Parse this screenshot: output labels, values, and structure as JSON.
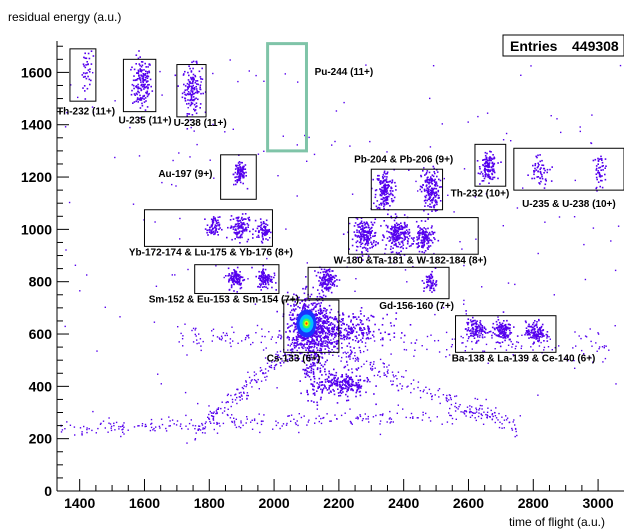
{
  "chart_data": {
    "type": "scatter",
    "title": "",
    "xlabel": "time of flight (a.u.)",
    "ylabel": "residual energy (a.u.)",
    "xlim": [
      1330,
      3080
    ],
    "ylim": [
      0,
      1720
    ],
    "x_ticks": [
      1400,
      1600,
      1800,
      2000,
      2200,
      2400,
      2600,
      2800,
      3000
    ],
    "y_ticks": [
      0,
      200,
      400,
      600,
      800,
      1000,
      1200,
      1400,
      1600
    ],
    "stats": {
      "label": "Entries",
      "value": "449308"
    },
    "colors": {
      "points": "#5500ee",
      "hot": "#00c0ff",
      "core": "#ffee00",
      "highlight": "#7fc4a8",
      "frame": "#000000"
    },
    "clusters": [
      {
        "x": 1590,
        "y": 1560,
        "sx": 15,
        "sy": 50,
        "n": 160
      },
      {
        "x": 1745,
        "y": 1540,
        "sx": 15,
        "sy": 45,
        "n": 150
      },
      {
        "x": 1893,
        "y": 1215,
        "sx": 10,
        "sy": 22,
        "n": 100
      },
      {
        "x": 2660,
        "y": 1240,
        "sx": 12,
        "sy": 25,
        "n": 140
      },
      {
        "x": 2340,
        "y": 1150,
        "sx": 14,
        "sy": 40,
        "n": 170
      },
      {
        "x": 2480,
        "y": 1150,
        "sx": 14,
        "sy": 40,
        "n": 170
      },
      {
        "x": 2280,
        "y": 980,
        "sx": 18,
        "sy": 30,
        "n": 190
      },
      {
        "x": 2380,
        "y": 980,
        "sx": 18,
        "sy": 30,
        "n": 210
      },
      {
        "x": 2460,
        "y": 970,
        "sx": 15,
        "sy": 25,
        "n": 130
      },
      {
        "x": 1890,
        "y": 1010,
        "sx": 15,
        "sy": 25,
        "n": 110
      },
      {
        "x": 1810,
        "y": 1010,
        "sx": 10,
        "sy": 20,
        "n": 70
      },
      {
        "x": 1965,
        "y": 1000,
        "sx": 10,
        "sy": 20,
        "n": 70
      },
      {
        "x": 1880,
        "y": 815,
        "sx": 12,
        "sy": 20,
        "n": 110
      },
      {
        "x": 1970,
        "y": 815,
        "sx": 12,
        "sy": 20,
        "n": 100
      },
      {
        "x": 2160,
        "y": 810,
        "sx": 15,
        "sy": 22,
        "n": 130
      },
      {
        "x": 2480,
        "y": 800,
        "sx": 10,
        "sy": 20,
        "n": 60
      },
      {
        "x": 2620,
        "y": 620,
        "sx": 15,
        "sy": 20,
        "n": 110
      },
      {
        "x": 2700,
        "y": 615,
        "sx": 15,
        "sy": 20,
        "n": 130
      },
      {
        "x": 2805,
        "y": 610,
        "sx": 15,
        "sy": 20,
        "n": 130
      },
      {
        "x": 2110,
        "y": 640,
        "sx": 35,
        "sy": 55,
        "n": 520
      },
      {
        "x": 2210,
        "y": 620,
        "sx": 70,
        "sy": 30,
        "n": 280
      },
      {
        "x": 2210,
        "y": 410,
        "sx": 40,
        "sy": 25,
        "n": 230
      },
      {
        "x": 2120,
        "y": 500,
        "sx": 20,
        "sy": 70,
        "n": 170
      },
      {
        "x": 2820,
        "y": 1230,
        "sx": 15,
        "sy": 30,
        "n": 55
      },
      {
        "x": 3005,
        "y": 1230,
        "sx": 10,
        "sy": 30,
        "n": 45
      },
      {
        "x": 1420,
        "y": 1610,
        "sx": 8,
        "sy": 40,
        "n": 35
      }
    ],
    "boxes": [
      {
        "x0": 1370,
        "x1": 1450,
        "y0": 1490,
        "y1": 1690,
        "label": "Th-232 (11+)",
        "lx": 1330,
        "ly": 1440,
        "anchor": "start"
      },
      {
        "x0": 1535,
        "x1": 1635,
        "y0": 1450,
        "y1": 1650,
        "label": "U-235 (11+)",
        "lx": 1520,
        "ly": 1405,
        "anchor": "start"
      },
      {
        "x0": 1700,
        "x1": 1790,
        "y0": 1430,
        "y1": 1630,
        "label": "U-238 (11+)",
        "lx": 1690,
        "ly": 1395,
        "anchor": "start"
      },
      {
        "x0": 1980,
        "x1": 2100,
        "y0": 1300,
        "y1": 1710,
        "label": "Pu-244 (11+)",
        "lx": 2125,
        "ly": 1590,
        "anchor": "start",
        "highlight": true
      },
      {
        "x0": 1835,
        "x1": 1945,
        "y0": 1115,
        "y1": 1285,
        "label": "Au-197 (9+)",
        "lx": 1810,
        "ly": 1200,
        "anchor": "end"
      },
      {
        "x0": 2620,
        "x1": 2715,
        "y0": 1165,
        "y1": 1325,
        "label": "Th-232 (10+)",
        "lx": 2545,
        "ly": 1125,
        "anchor": "start"
      },
      {
        "x0": 2300,
        "x1": 2520,
        "y0": 1075,
        "y1": 1230,
        "label": "Pb-204 & Pb-206 (9+)",
        "lx": 2400,
        "ly": 1255,
        "anchor": "middle"
      },
      {
        "x0": 2740,
        "x1": 3080,
        "y0": 1150,
        "y1": 1310,
        "label": "U-235 & U-238 (10+)",
        "lx": 2910,
        "ly": 1085,
        "anchor": "middle"
      },
      {
        "x0": 1600,
        "x1": 1995,
        "y0": 935,
        "y1": 1075,
        "label": "Yb-172-174 & Lu-175 & Yb-176 (8+)",
        "lx": 1805,
        "ly": 900,
        "anchor": "middle"
      },
      {
        "x0": 2230,
        "x1": 2630,
        "y0": 905,
        "y1": 1045,
        "label": "W-180 &Ta-181 & W-182-184 (8+)",
        "lx": 2420,
        "ly": 870,
        "anchor": "middle"
      },
      {
        "x0": 1755,
        "x1": 2015,
        "y0": 755,
        "y1": 865,
        "label": "Sm-152 & Eu-153 & Sm-154 (7+)",
        "lx": 1845,
        "ly": 720,
        "anchor": "middle"
      },
      {
        "x0": 2105,
        "x1": 2540,
        "y0": 735,
        "y1": 855,
        "label": "Gd-156-160 (7+)",
        "lx": 2440,
        "ly": 695,
        "anchor": "middle"
      },
      {
        "x0": 2030,
        "x1": 2200,
        "y0": 530,
        "y1": 730,
        "label": "Cs-133 (6+)",
        "lx": 2060,
        "ly": 495,
        "anchor": "middle"
      },
      {
        "x0": 2560,
        "x1": 2870,
        "y0": 530,
        "y1": 670,
        "label": "Ba-138 & La-139 & Ce-140 (6+)",
        "lx": 2770,
        "ly": 495,
        "anchor": "middle"
      }
    ]
  }
}
